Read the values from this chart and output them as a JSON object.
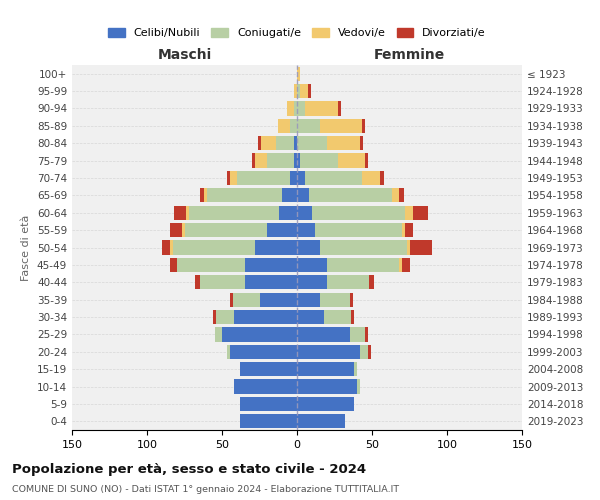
{
  "age_groups": [
    "0-4",
    "5-9",
    "10-14",
    "15-19",
    "20-24",
    "25-29",
    "30-34",
    "35-39",
    "40-44",
    "45-49",
    "50-54",
    "55-59",
    "60-64",
    "65-69",
    "70-74",
    "75-79",
    "80-84",
    "85-89",
    "90-94",
    "95-99",
    "100+"
  ],
  "birth_years": [
    "2019-2023",
    "2014-2018",
    "2009-2013",
    "2004-2008",
    "1999-2003",
    "1994-1998",
    "1989-1993",
    "1984-1988",
    "1979-1983",
    "1974-1978",
    "1969-1973",
    "1964-1968",
    "1959-1963",
    "1954-1958",
    "1949-1953",
    "1944-1948",
    "1939-1943",
    "1934-1938",
    "1929-1933",
    "1924-1928",
    "≤ 1923"
  ],
  "colors": {
    "celibi": "#4472c4",
    "coniugati": "#b8cfa4",
    "vedovi": "#f2c96e",
    "divorziati": "#c0392b",
    "background": "#f0f0f0",
    "center_line": "#9999bb"
  },
  "males": {
    "celibi": [
      38,
      38,
      42,
      38,
      45,
      50,
      42,
      25,
      35,
      35,
      28,
      20,
      12,
      10,
      5,
      2,
      2,
      0,
      0,
      0,
      0
    ],
    "coniugati": [
      0,
      0,
      0,
      0,
      2,
      5,
      12,
      18,
      30,
      45,
      55,
      55,
      60,
      50,
      35,
      18,
      12,
      5,
      2,
      0,
      0
    ],
    "vedovi": [
      0,
      0,
      0,
      0,
      0,
      0,
      0,
      0,
      0,
      0,
      2,
      2,
      2,
      2,
      5,
      8,
      10,
      8,
      5,
      2,
      0
    ],
    "divorziati": [
      0,
      0,
      0,
      0,
      0,
      0,
      2,
      2,
      3,
      5,
      5,
      8,
      8,
      3,
      2,
      2,
      2,
      0,
      0,
      0,
      0
    ]
  },
  "females": {
    "celibi": [
      32,
      38,
      40,
      38,
      42,
      35,
      18,
      15,
      20,
      20,
      15,
      12,
      10,
      8,
      5,
      2,
      0,
      0,
      0,
      0,
      0
    ],
    "coniugati": [
      0,
      0,
      2,
      2,
      5,
      10,
      18,
      20,
      28,
      48,
      58,
      58,
      62,
      55,
      38,
      25,
      20,
      15,
      5,
      2,
      0
    ],
    "vedovi": [
      0,
      0,
      0,
      0,
      0,
      0,
      0,
      0,
      0,
      2,
      2,
      2,
      5,
      5,
      12,
      18,
      22,
      28,
      22,
      5,
      2
    ],
    "divorziati": [
      0,
      0,
      0,
      0,
      2,
      2,
      2,
      2,
      3,
      5,
      15,
      5,
      10,
      3,
      3,
      2,
      2,
      2,
      2,
      2,
      0
    ]
  },
  "title": "Popolazione per età, sesso e stato civile - 2024",
  "subtitle": "COMUNE DI SUNO (NO) - Dati ISTAT 1° gennaio 2024 - Elaborazione TUTTITALIA.IT",
  "xlabel_left": "Maschi",
  "xlabel_right": "Femmine",
  "ylabel_left": "Fasce di età",
  "xlim": 150,
  "legend_labels": [
    "Celibi/Nubili",
    "Coniugati/e",
    "Vedovi/e",
    "Divorziati/e"
  ]
}
